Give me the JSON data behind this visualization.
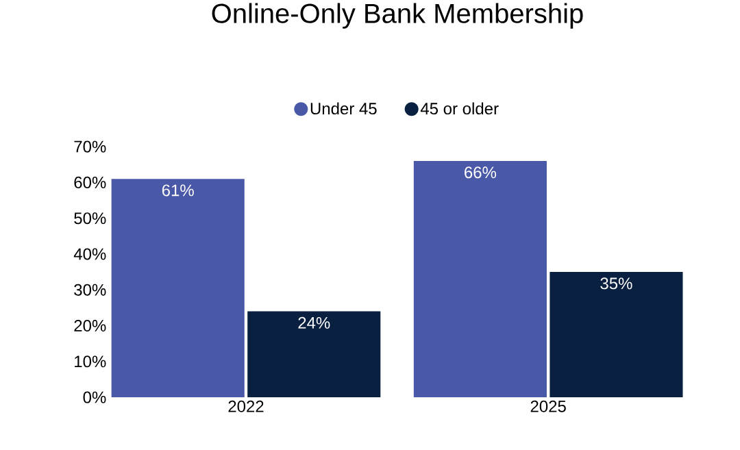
{
  "chart_data": {
    "type": "bar",
    "title": "Online-Only Bank Membership",
    "categories": [
      "2022",
      "2025"
    ],
    "series": [
      {
        "name": "Under 45",
        "color": "#4a58a8",
        "values": [
          61,
          66
        ],
        "value_labels": [
          "61%",
          "66%"
        ]
      },
      {
        "name": "45 or older",
        "color": "#0a2040",
        "values": [
          24,
          35
        ],
        "value_labels": [
          "24%",
          "35%"
        ]
      }
    ],
    "ylim": [
      0,
      70
    ],
    "yticks": [
      {
        "value": 0,
        "label": "0%"
      },
      {
        "value": 10,
        "label": "10%"
      },
      {
        "value": 20,
        "label": "20%"
      },
      {
        "value": 30,
        "label": "30%"
      },
      {
        "value": 40,
        "label": "40%"
      },
      {
        "value": 50,
        "label": "50%"
      },
      {
        "value": 60,
        "label": "60%"
      },
      {
        "value": 70,
        "label": "70%"
      }
    ],
    "legend": "top",
    "grid": false
  }
}
